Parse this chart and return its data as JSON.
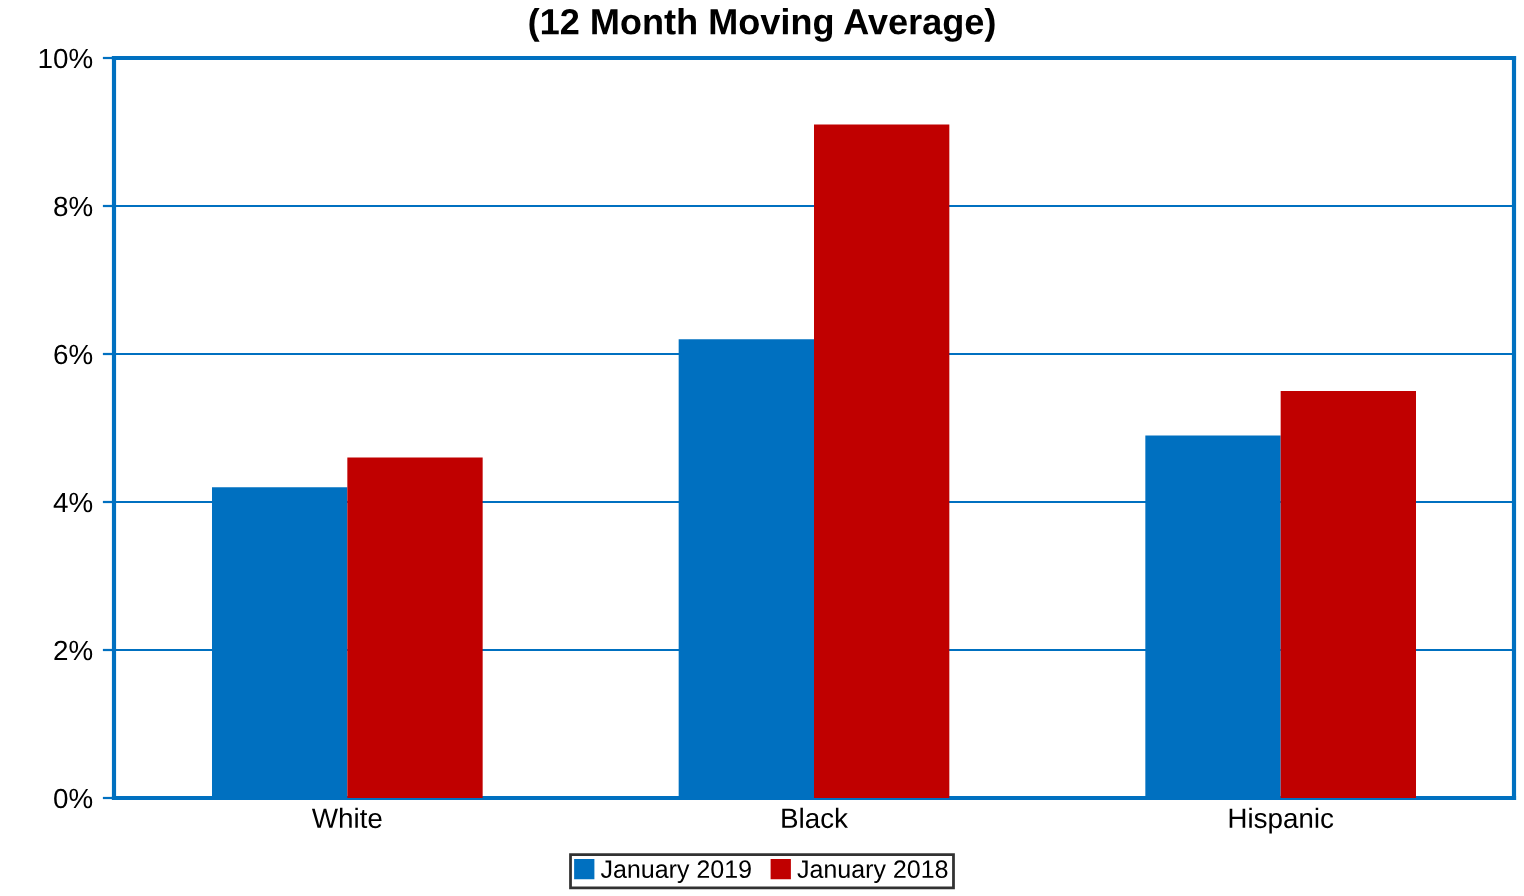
{
  "chart_data": {
    "type": "bar",
    "title": "(12 Month Moving Average)",
    "categories": [
      "White",
      "Black",
      "Hispanic"
    ],
    "series": [
      {
        "name": "January 2019",
        "color": "#0070c0",
        "values": [
          4.2,
          6.2,
          4.9
        ]
      },
      {
        "name": "January 2018",
        "color": "#c00000",
        "values": [
          4.6,
          9.1,
          5.5
        ]
      }
    ],
    "ylim": [
      0,
      10
    ],
    "yticks": [
      {
        "value": 0,
        "label": "0%"
      },
      {
        "value": 2,
        "label": "2%"
      },
      {
        "value": 4,
        "label": "4%"
      },
      {
        "value": 6,
        "label": "6%"
      },
      {
        "value": 8,
        "label": "8%"
      },
      {
        "value": 10,
        "label": "10%"
      }
    ],
    "grid": "y",
    "legend": "bottom"
  }
}
